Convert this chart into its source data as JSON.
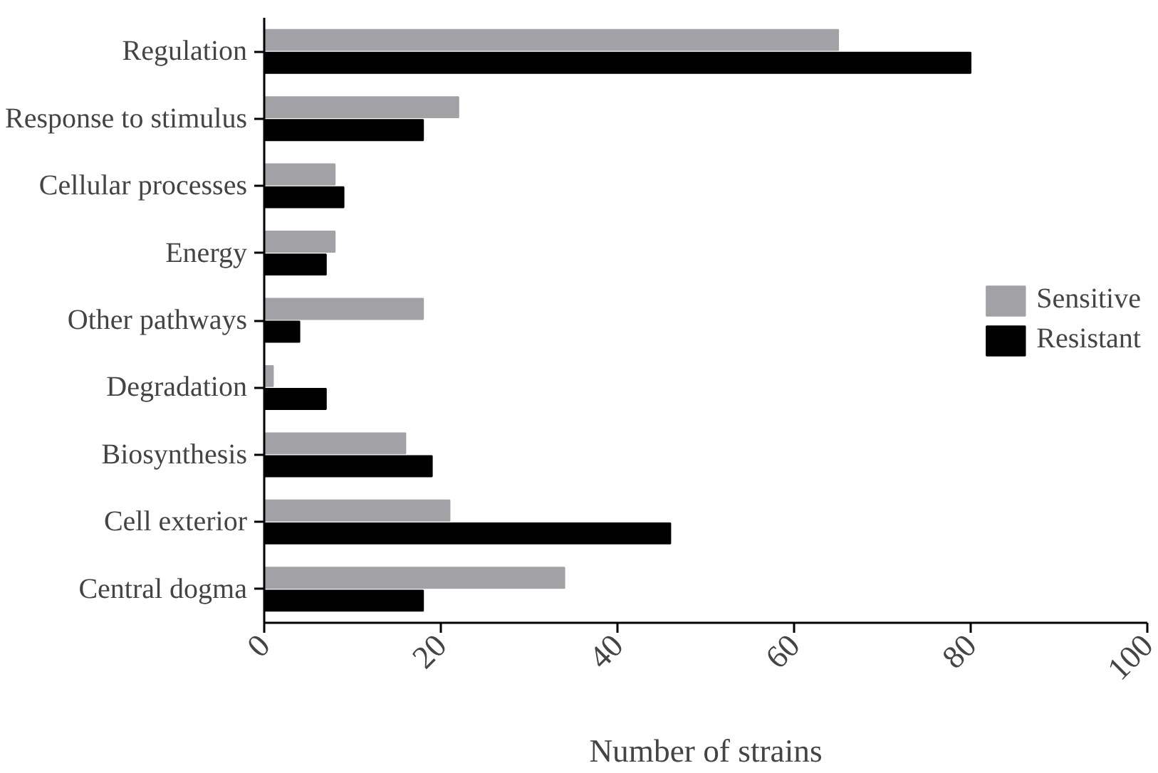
{
  "chart_data": {
    "type": "bar",
    "orientation": "horizontal",
    "xlabel": "Number of strains",
    "categories": [
      "Regulation",
      "Response to stimulus",
      "Cellular processes",
      "Energy",
      "Other pathways",
      "Degradation",
      "Biosynthesis",
      "Cell exterior",
      "Central dogma"
    ],
    "series": [
      {
        "name": "Sensitive",
        "color": "#a2a1a6",
        "values": [
          65,
          22,
          8,
          8,
          18,
          1,
          16,
          21,
          34
        ]
      },
      {
        "name": "Resistant",
        "color": "#000000",
        "values": [
          80,
          18,
          9,
          7,
          4,
          7,
          19,
          46,
          18
        ]
      }
    ],
    "xlim": [
      0,
      100
    ],
    "xticks": [
      0,
      20,
      40,
      60,
      80,
      100
    ],
    "grid": false,
    "legend": "right"
  }
}
